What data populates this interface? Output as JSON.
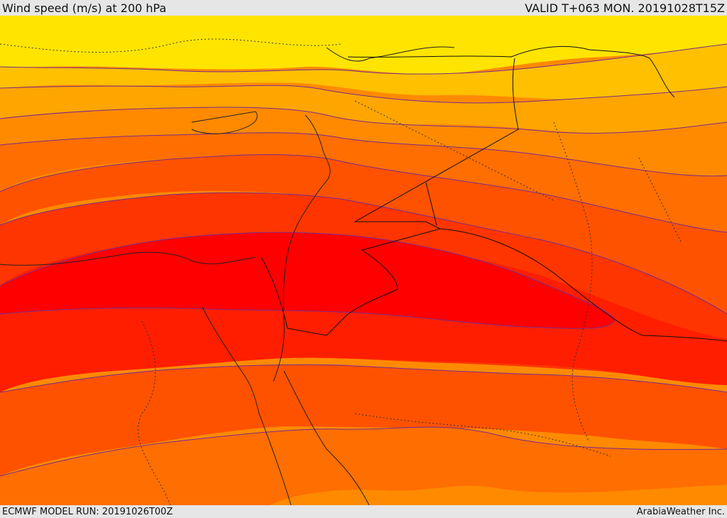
{
  "header": {
    "title": "Wind speed (m/s) at 200 hPa",
    "valid": "VALID T+063 MON. 20191028T15Z"
  },
  "footer": {
    "model_run": "ECMWF MODEL RUN: 20191026T00Z",
    "credit": "ArabiaWeather Inc."
  },
  "colors": {
    "band_1": "#ffe400",
    "band_2": "#ffc000",
    "band_3": "#ffa500",
    "band_4": "#ff8a00",
    "band_5": "#ff6e00",
    "band_6": "#ff5200",
    "band_7": "#ff3500",
    "band_8": "#ff1e00",
    "band_9": "#ff0000",
    "contour_line": "#7a2a8a",
    "coast_line": "#222222"
  }
}
